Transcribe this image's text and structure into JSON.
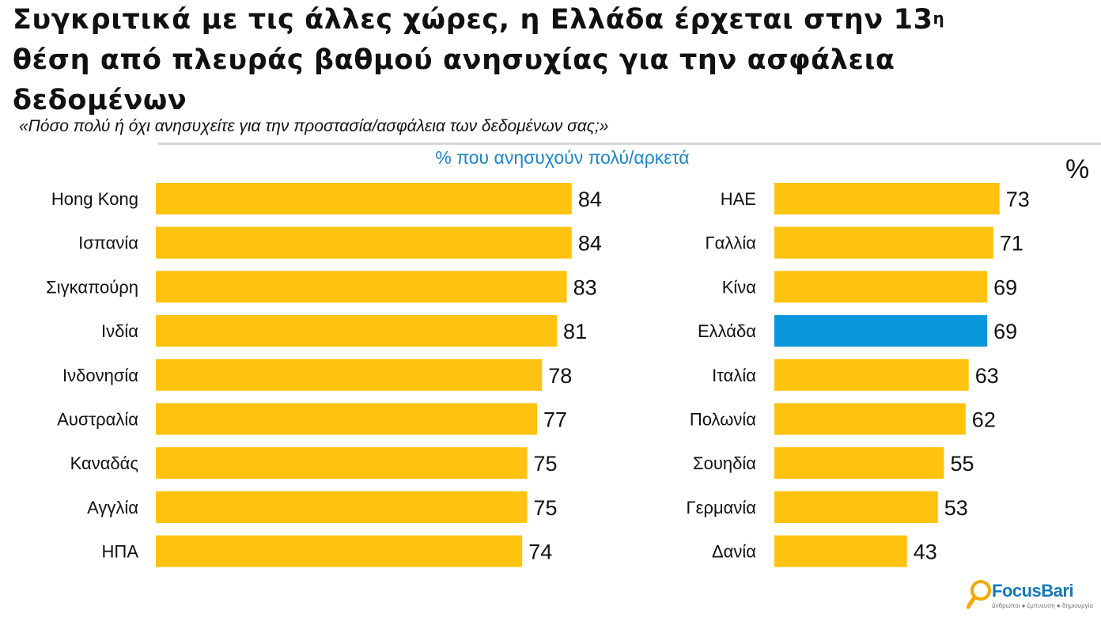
{
  "header": {
    "title_main": "Συγκριτικά με τις άλλες χώρες, η Ελλάδα έρχεται στην 13",
    "title_sup": "η",
    "title_rest": "θέση από πλευράς βαθμού ανησυχίας για την ασφάλεια δεδομένων",
    "subtitle": "«Πόσο πολύ ή όχι ανησυχείτε για την προστασία/ασφάλεια των δεδομένων σας;»"
  },
  "legend_label": "% που ανησυχούν πολύ/αρκετά",
  "unit_label": "%",
  "colors": {
    "bar": "#FFC20E",
    "highlight": "#0A96DC",
    "legend_text": "#1f86c6",
    "logo": "#1877b8",
    "logo_icon": "#F2A900"
  },
  "chart_data": [
    {
      "type": "bar",
      "orientation": "horizontal",
      "categories": [
        "Hong Kong",
        "Ισπανία",
        "Σιγκαπούρη",
        "Ινδία",
        "Ινδονησία",
        "Αυστραλία",
        "Καναδάς",
        "Αγγλία",
        "ΗΠΑ"
      ],
      "values": [
        84,
        84,
        83,
        81,
        78,
        77,
        75,
        75,
        74
      ],
      "highlight": []
    },
    {
      "type": "bar",
      "orientation": "horizontal",
      "categories": [
        "ΗΑΕ",
        "Γαλλία",
        "Κίνα",
        "Ελλάδα",
        "Ιταλία",
        "Πολωνία",
        "Σουηδία",
        "Γερμανία",
        "Δανία"
      ],
      "values": [
        73,
        71,
        69,
        69,
        63,
        62,
        55,
        53,
        43
      ],
      "highlight": [
        "Ελλάδα"
      ]
    }
  ],
  "logo": {
    "name": "FocusBari",
    "tagline": "άνθρωποι ● έμπνευση ● δημιουργία"
  }
}
